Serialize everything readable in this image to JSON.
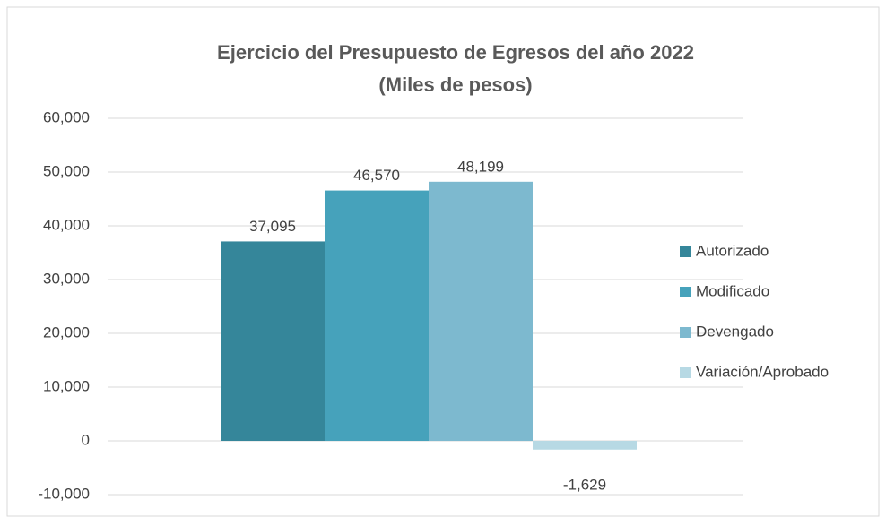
{
  "chart_data": {
    "type": "bar",
    "title": "Ejercicio del Presupuesto de Egresos del año 2022",
    "subtitle": "(Miles de pesos)",
    "categories": [
      null
    ],
    "series": [
      {
        "name": "Autorizado",
        "color": "#35869a",
        "values": [
          37095
        ],
        "value_labels": [
          "37,095"
        ]
      },
      {
        "name": "Modificado",
        "color": "#46a2bb",
        "values": [
          46570
        ],
        "value_labels": [
          "46,570"
        ]
      },
      {
        "name": "Devengado",
        "color": "#7db9cf",
        "values": [
          48199
        ],
        "value_labels": [
          "48,199"
        ]
      },
      {
        "name": "Variación/Aprobado",
        "color": "#b7d9e4",
        "values": [
          -1629
        ],
        "value_labels": [
          "-1,629"
        ]
      }
    ],
    "ylim": [
      -10000,
      60000
    ],
    "yticks": [
      {
        "value": -10000,
        "label": "-10,000"
      },
      {
        "value": 0,
        "label": "0"
      },
      {
        "value": 10000,
        "label": "10,000"
      },
      {
        "value": 20000,
        "label": "20,000"
      },
      {
        "value": 30000,
        "label": "30,000"
      },
      {
        "value": 40000,
        "label": "40,000"
      },
      {
        "value": 50000,
        "label": "50,000"
      },
      {
        "value": 60000,
        "label": "60,000"
      }
    ],
    "grid": true,
    "legend": "right"
  }
}
